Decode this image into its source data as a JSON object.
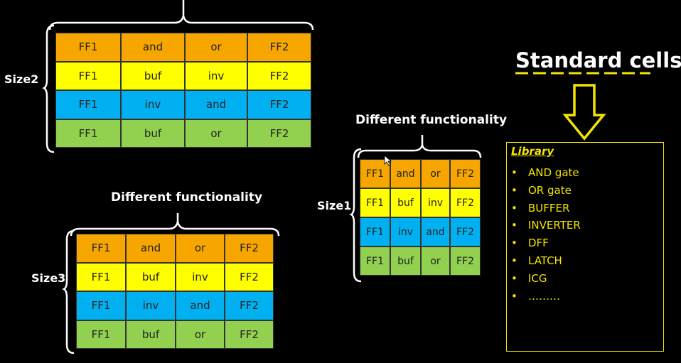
{
  "colors": {
    "orange": "#f7a600",
    "yellow": "#ffff00",
    "blue": "#00b0f0",
    "green": "#92d050",
    "accent": "#f2e500"
  },
  "row_colors": [
    "orange",
    "yellow",
    "blue",
    "green"
  ],
  "size2": {
    "label": "Size2",
    "rows": [
      [
        "FF1",
        "and",
        "or",
        "FF2"
      ],
      [
        "FF1",
        "buf",
        "inv",
        "FF2"
      ],
      [
        "FF1",
        "inv",
        "and",
        "FF2"
      ],
      [
        "FF1",
        "buf",
        "or",
        "FF2"
      ]
    ]
  },
  "size3": {
    "label": "Size3",
    "heading": "Different functionality",
    "rows": [
      [
        "FF1",
        "and",
        "or",
        "FF2"
      ],
      [
        "FF1",
        "buf",
        "inv",
        "FF2"
      ],
      [
        "FF1",
        "inv",
        "and",
        "FF2"
      ],
      [
        "FF1",
        "buf",
        "or",
        "FF2"
      ]
    ]
  },
  "size1": {
    "label": "Size1",
    "heading": "Different functionality",
    "rows": [
      [
        "FF1",
        "and",
        "or",
        "FF2"
      ],
      [
        "FF1",
        "buf",
        "inv",
        "FF2"
      ],
      [
        "FF1",
        "inv",
        "and",
        "FF2"
      ],
      [
        "FF1",
        "buf",
        "or",
        "FF2"
      ]
    ]
  },
  "standard_cells": {
    "title": "Standard cells",
    "library_title": "Library",
    "items": [
      "AND gate",
      "OR gate",
      "BUFFER",
      "INVERTER",
      "DFF",
      "LATCH",
      "ICG",
      "………"
    ]
  }
}
